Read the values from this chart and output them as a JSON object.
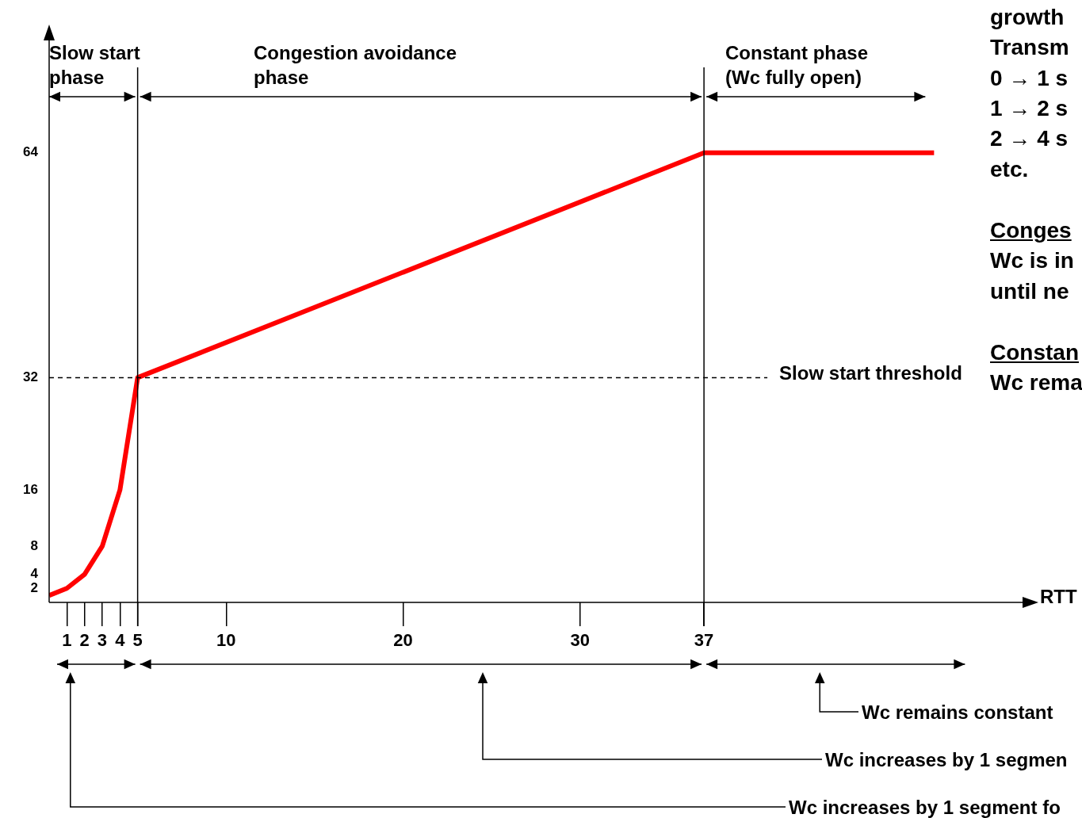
{
  "chart_data": {
    "type": "line",
    "xlabel": "RTT",
    "x": [
      0,
      1,
      2,
      3,
      4,
      5,
      37,
      50
    ],
    "series": [
      {
        "color": "#ff0000",
        "values": [
          1,
          2,
          4,
          8,
          16,
          32,
          64,
          64
        ]
      }
    ],
    "xlim": [
      0,
      55
    ],
    "xticks": [
      1,
      2,
      3,
      4,
      5,
      10,
      20,
      30,
      37
    ],
    "ylim": [
      0,
      80
    ],
    "yticks": [
      2,
      4,
      8,
      16,
      32,
      64
    ],
    "grid": false,
    "legend": false,
    "marker": "none",
    "line_style": "solid",
    "ref_lines": [
      {
        "axis": "y",
        "value": 32,
        "label": "Slow start threshold",
        "line_style": "dashed"
      },
      {
        "axis": "x",
        "value": 5,
        "label": null
      },
      {
        "axis": "x",
        "value": 37,
        "label": null
      }
    ],
    "annotations": [
      "Slow start phase",
      "Congestion avoidance phase",
      "Constant phase (Wc fully open)",
      "Wc remains constant",
      "Wc increases by 1 segmen",
      "Wc increases by 1 segment fo",
      "growth",
      "Transm",
      "0 → 1 s",
      "1 → 2 s",
      "2 → 4 s",
      "etc.",
      "Conges",
      "Wc is in",
      "until ne",
      "Constan",
      "Wc rema"
    ]
  }
}
